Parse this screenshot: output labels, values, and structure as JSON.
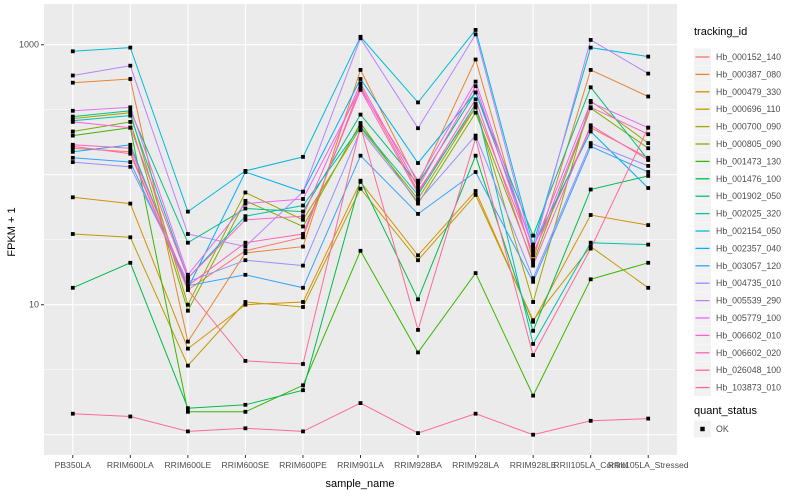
{
  "chart_data": {
    "type": "line",
    "title": "",
    "xlabel": "sample_name",
    "ylabel": "FPKM + 1",
    "y_scale": "log10",
    "y_tick_labels": [
      "1000",
      "10"
    ],
    "y_tick_values": [
      1000,
      10
    ],
    "y_major_gridlines": [
      1,
      10,
      100,
      1000
    ],
    "y_minor_gridlines": [
      3.162,
      31.62,
      316.2
    ],
    "ylim": [
      0.7,
      2000
    ],
    "grid": true,
    "legend_position": "right",
    "categories": [
      "PB350LA",
      "RRIM600LA",
      "RRIM600LE",
      "RRIM600SE",
      "RRIM600PE",
      "RRIM901LA",
      "RRIM928BA",
      "RRIM928LA",
      "RRIM928LE",
      "RRII105LA_Control",
      "RRII105LA_Stressed"
    ],
    "series": [
      {
        "name": "Hb_000152_140",
        "color": "#F8766D",
        "values": [
          160,
          150,
          13,
          26,
          33,
          480,
          75,
          330,
          25,
          230,
          135
        ]
      },
      {
        "name": "Hb_000387_080",
        "color": "#EA8331",
        "values": [
          510,
          545,
          5.2,
          25,
          28,
          640,
          85,
          770,
          22,
          640,
          400
        ]
      },
      {
        "name": "Hb_000479_330",
        "color": "#D89000",
        "values": [
          67,
          60,
          4.6,
          10,
          10.5,
          88,
          24,
          75,
          7.4,
          49,
          41
        ]
      },
      {
        "name": "Hb_000696_110",
        "color": "#C09B00",
        "values": [
          35,
          33,
          3.4,
          10.5,
          9.6,
          78,
          22,
          70,
          7.6,
          28,
          13.5
        ]
      },
      {
        "name": "Hb_000700_090",
        "color": "#A3A500",
        "values": [
          270,
          300,
          10,
          73,
          45,
          230,
          65,
          330,
          10.5,
          370,
          175
        ]
      },
      {
        "name": "Hb_000805_090",
        "color": "#7CAE00",
        "values": [
          215,
          255,
          9,
          63,
          40,
          250,
          60,
          300,
          21,
          325,
          160
        ]
      },
      {
        "name": "Hb_001473_130",
        "color": "#39B600",
        "values": [
          200,
          230,
          1.5,
          1.5,
          2.4,
          26,
          4.3,
          17.5,
          2.0,
          15.7,
          21
        ]
      },
      {
        "name": "Hb_001476_100",
        "color": "#00BB4E",
        "values": [
          13.5,
          21,
          1.6,
          1.7,
          2.2,
          90,
          11,
          140,
          6.3,
          77,
          98
        ]
      },
      {
        "name": "Hb_001902_050",
        "color": "#00C087",
        "values": [
          280,
          310,
          30,
          55,
          52,
          290,
          85,
          430,
          34,
          470,
          130
        ]
      },
      {
        "name": "Hb_002025_320",
        "color": "#00C0AF",
        "values": [
          260,
          285,
          16,
          48,
          58,
          235,
          70,
          350,
          5.0,
          30,
          29
        ]
      },
      {
        "name": "Hb_002154_050",
        "color": "#00BCD8",
        "values": [
          890,
          950,
          52,
          107,
          137,
          1150,
          360,
          1300,
          29,
          950,
          810
        ]
      },
      {
        "name": "Hb_002357_040",
        "color": "#00B0F6",
        "values": [
          150,
          170,
          13.4,
          105,
          74,
          545,
          123,
          430,
          28,
          215,
          79
        ]
      },
      {
        "name": "Hb_003057_120",
        "color": "#35A2FF",
        "values": [
          135,
          125,
          14,
          17,
          13.5,
          140,
          50,
          105,
          15,
          165,
          105
        ]
      },
      {
        "name": "Hb_004735_010",
        "color": "#9590FF",
        "values": [
          125,
          115,
          15,
          22,
          20,
          220,
          62,
          200,
          16,
          175,
          117
        ]
      },
      {
        "name": "Hb_005539_290",
        "color": "#B983FF",
        "values": [
          580,
          690,
          35,
          28,
          74,
          1120,
          228,
          1200,
          26,
          1090,
          600
        ]
      },
      {
        "name": "Hb_005779_100",
        "color": "#E76BF3",
        "values": [
          310,
          330,
          17,
          60,
          65,
          460,
          90,
          520,
          27,
          360,
          230
        ]
      },
      {
        "name": "Hb_006602_010",
        "color": "#FD61D1",
        "values": [
          255,
          230,
          16,
          45,
          48,
          505,
          80,
          480,
          24,
          330,
          205
        ]
      },
      {
        "name": "Hb_006602_020",
        "color": "#FF62BC",
        "values": [
          170,
          160,
          14,
          30,
          35,
          450,
          72,
          380,
          20,
          240,
          130
        ]
      },
      {
        "name": "Hb_026048_100",
        "color": "#FF6A98",
        "values": [
          165,
          145,
          13,
          3.7,
          3.5,
          235,
          6.4,
          190,
          4.1,
          27,
          230
        ]
      },
      {
        "name": "Hb_103873_010",
        "color": "#FF689F",
        "values": [
          1.45,
          1.38,
          1.06,
          1.12,
          1.06,
          1.75,
          1.03,
          1.45,
          1.0,
          1.28,
          1.33
        ]
      }
    ],
    "legend": {
      "tracking_title": "tracking_id",
      "quant_title": "quant_status",
      "quant_items": [
        {
          "label": "OK",
          "marker": "black-square"
        }
      ]
    },
    "colors": {
      "panel_background": "#EBEBEB",
      "gridline": "#FFFFFF",
      "axis_text": "#4D4D4D",
      "point": "#000000",
      "legend_key_background": "#F2F2F2"
    }
  }
}
